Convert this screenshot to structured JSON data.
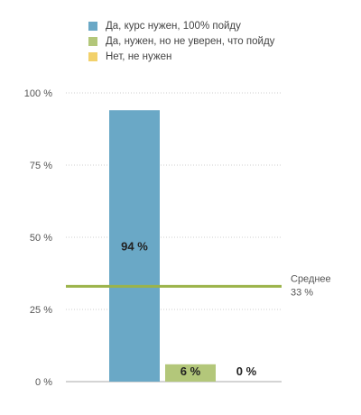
{
  "colors": {
    "series": [
      "#6aa8c6",
      "#b3c77a",
      "#f2d16b"
    ],
    "average_line": "#9bb34a",
    "grid": "#cfcfcf",
    "axis": "#aaaaaa"
  },
  "chart_data": {
    "type": "bar",
    "categories": [
      "Да, курс нужен, 100% пойду",
      "Да, нужен, но не уверен, что пойду",
      "Нет, не нужен"
    ],
    "values": [
      94,
      6,
      0
    ],
    "data_labels": [
      "94 %",
      "6 %",
      "0 %"
    ],
    "legend": [
      "Да, курс нужен, 100% пойду",
      "Да, нужен, но не уверен, что пойду",
      "Нет, не нужен"
    ],
    "legend_position": "top",
    "ylim": [
      0,
      100
    ],
    "yticks": [
      0,
      25,
      50,
      75,
      100
    ],
    "ytick_labels": [
      "0 %",
      "25 %",
      "50 %",
      "75 %",
      "100 %"
    ],
    "grid": true,
    "average": {
      "value": 33,
      "label": "Среднее",
      "value_label": "33 %"
    }
  }
}
